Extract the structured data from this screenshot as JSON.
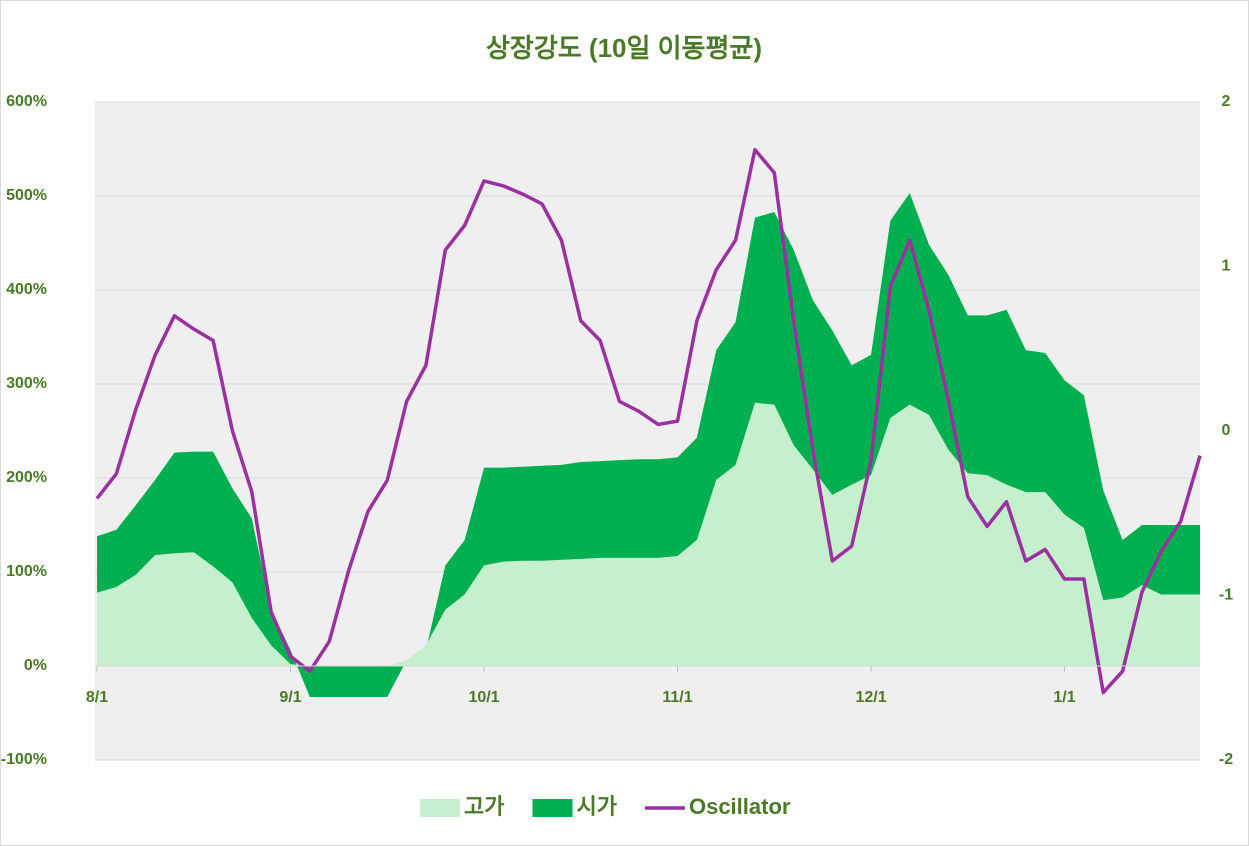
{
  "chart_data": {
    "type": "area-line",
    "title": "상장강도 (10일 이동평균)",
    "categories": [
      "8/1",
      null,
      null,
      null,
      null,
      null,
      null,
      null,
      null,
      null,
      "9/1",
      null,
      null,
      null,
      null,
      null,
      null,
      null,
      null,
      null,
      "10/1",
      null,
      null,
      null,
      null,
      null,
      null,
      null,
      null,
      null,
      "11/1",
      null,
      null,
      null,
      null,
      null,
      null,
      null,
      null,
      null,
      "12/1",
      null,
      null,
      null,
      null,
      null,
      null,
      null,
      null,
      null,
      "1/1",
      null,
      null,
      null,
      null,
      null,
      null,
      null
    ],
    "series": [
      {
        "name": "시가",
        "type": "area",
        "color": "#00b050",
        "values": [
          138,
          145,
          171,
          198,
          227,
          228,
          228,
          189,
          157,
          60,
          17,
          -33,
          -33,
          -33,
          -33,
          -33,
          6,
          17,
          107,
          134,
          211,
          211,
          212,
          213,
          214,
          217,
          218,
          219,
          220,
          220,
          222,
          243,
          336,
          366,
          477,
          483,
          443,
          389,
          357,
          320,
          331,
          474,
          503,
          448,
          416,
          373,
          373,
          379,
          336,
          333,
          304,
          288,
          187,
          134,
          150,
          150,
          150,
          150
        ]
      },
      {
        "name": "고가",
        "type": "area",
        "color": "#c6efce",
        "values": [
          78,
          84,
          97,
          118,
          120,
          121,
          106,
          89,
          51,
          22,
          2,
          0,
          0,
          0,
          0,
          0,
          6,
          22,
          60,
          76,
          107,
          111,
          112,
          112,
          113,
          114,
          115,
          115,
          115,
          115,
          117,
          134,
          198,
          214,
          280,
          278,
          235,
          209,
          182,
          193,
          203,
          264,
          278,
          267,
          230,
          205,
          203,
          193,
          185,
          185,
          161,
          147,
          70,
          73,
          86,
          76,
          76,
          76
        ]
      },
      {
        "name": "Oscillator",
        "type": "line",
        "axis": "y2",
        "color": "#9b30a0",
        "values": [
          -0.41,
          -0.26,
          0.13,
          0.46,
          0.7,
          0.62,
          0.55,
          0.0,
          -0.37,
          -1.1,
          -1.37,
          -1.46,
          -1.28,
          -0.85,
          -0.49,
          -0.3,
          0.18,
          0.4,
          1.1,
          1.25,
          1.52,
          1.49,
          1.44,
          1.38,
          1.16,
          0.67,
          0.55,
          0.18,
          0.12,
          0.04,
          0.06,
          0.67,
          0.98,
          1.16,
          1.71,
          1.57,
          0.67,
          -0.12,
          -0.79,
          -0.7,
          -0.18,
          0.88,
          1.16,
          0.73,
          0.18,
          -0.4,
          -0.58,
          -0.43,
          -0.79,
          -0.72,
          -0.9,
          -0.9,
          -1.59,
          -1.46,
          -0.98,
          -0.73,
          -0.55,
          -0.15
        ]
      }
    ],
    "legend_order": [
      1,
      0,
      2
    ],
    "ylim": [
      -100,
      600
    ],
    "yticks": [
      {
        "value": -100,
        "label": "-100%"
      },
      {
        "value": 0,
        "label": "0%"
      },
      {
        "value": 100,
        "label": "100%"
      },
      {
        "value": 200,
        "label": "200%"
      },
      {
        "value": 300,
        "label": "300%"
      },
      {
        "value": 400,
        "label": "400%"
      },
      {
        "value": 500,
        "label": "500%"
      },
      {
        "value": 600,
        "label": "600%"
      }
    ],
    "y2lim": [
      -2,
      2
    ],
    "y2ticks": [
      -2,
      -1,
      0,
      1,
      2
    ],
    "grid": true,
    "legend": "bottom"
  }
}
